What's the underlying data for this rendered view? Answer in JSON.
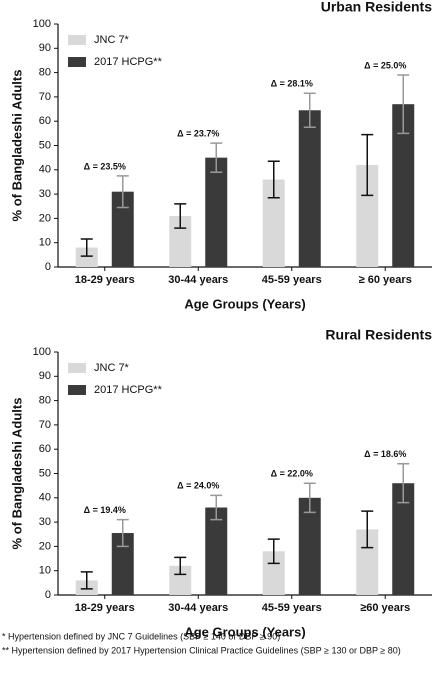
{
  "chart_data": [
    {
      "type": "bar",
      "title": "Urban Residents",
      "xlabel": "Age Groups (Years)",
      "ylabel": "% of Bangladeshi Adults",
      "categories": [
        "18-29 years",
        "30-44 years",
        "45-59 years",
        "≥ 60 years"
      ],
      "series": [
        {
          "name": "JNC 7*",
          "color": "#d9d9d9",
          "error_color": "#111111",
          "values": [
            8,
            21,
            36,
            42
          ],
          "errors": [
            3.5,
            5,
            7.5,
            12.5
          ]
        },
        {
          "name": "2017 HCPG**",
          "color": "#3a3a3a",
          "error_color": "#999999",
          "values": [
            31,
            45,
            64.5,
            67
          ],
          "errors": [
            6.5,
            6,
            7,
            12
          ]
        }
      ],
      "annotations": [
        "Δ = 23.5%",
        "Δ = 23.7%",
        "Δ = 28.1%",
        "Δ = 25.0%"
      ],
      "ylim": [
        0,
        100
      ],
      "yticks": [
        0,
        10,
        20,
        30,
        40,
        50,
        60,
        70,
        80,
        90,
        100
      ],
      "grid": false,
      "legend": "upper left"
    },
    {
      "type": "bar",
      "title": "Rural Residents",
      "xlabel": "Age Groups (Years)",
      "ylabel": "% of Bangladeshi Adults",
      "categories": [
        "18-29 years",
        "30-44 years",
        "45-59 years",
        "≥60 years"
      ],
      "series": [
        {
          "name": "JNC 7*",
          "color": "#d9d9d9",
          "error_color": "#111111",
          "values": [
            6,
            12,
            18,
            27
          ],
          "errors": [
            3.5,
            3.5,
            5,
            7.5
          ]
        },
        {
          "name": "2017 HCPG**",
          "color": "#3a3a3a",
          "error_color": "#999999",
          "values": [
            25.5,
            36,
            40,
            46
          ],
          "errors": [
            5.5,
            5,
            6,
            8
          ]
        }
      ],
      "annotations": [
        "Δ = 19.4%",
        "Δ = 24.0%",
        "Δ = 22.0%",
        "Δ = 18.6%"
      ],
      "ylim": [
        0,
        100
      ],
      "yticks": [
        0,
        10,
        20,
        30,
        40,
        50,
        60,
        70,
        80,
        90,
        100
      ],
      "grid": false,
      "legend": "upper left"
    }
  ],
  "footnotes": [
    "* Hypertension defined by JNC 7 Guidelines (SBP ≥ 140 or DBP ≥ 90)",
    "** Hypertension defined by 2017 Hypertension Clinical Practice Guidelines (SBP ≥ 130 or DBP ≥ 80)"
  ]
}
